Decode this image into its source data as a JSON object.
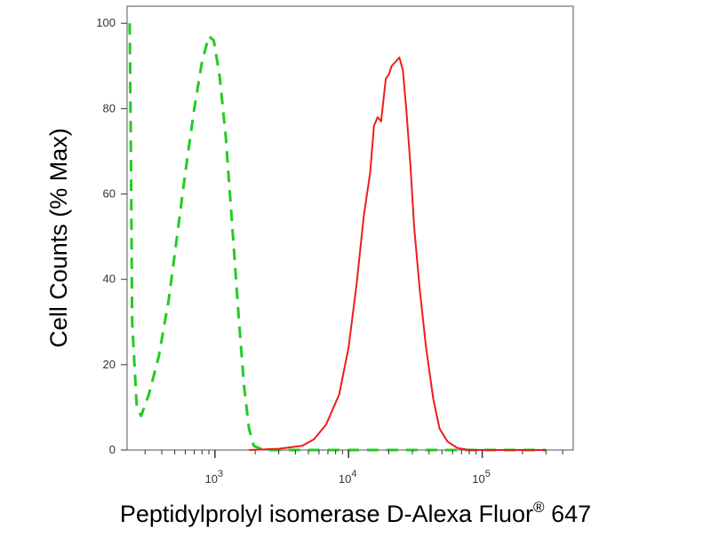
{
  "chart_data": {
    "type": "line",
    "xlabel": "Peptidylprolyl isomerase D-Alexa Fluor",
    "xlabel_superscript": "®",
    "xlabel_suffix": " 647",
    "ylabel": "Cell Counts (% Max)",
    "x_scale": "log",
    "xlim": [
      220,
      480000
    ],
    "ylim": [
      0,
      104
    ],
    "y_ticks": [
      0,
      20,
      40,
      60,
      80,
      100
    ],
    "y_tick_labels": [
      "0",
      "20",
      "40",
      "60",
      "80",
      "100"
    ],
    "x_major_ticks": [
      1000,
      10000,
      100000
    ],
    "x_tick_labels": [
      {
        "value": 1000,
        "base": "10",
        "exp": "3"
      },
      {
        "value": 10000,
        "base": "10",
        "exp": "4"
      },
      {
        "value": 100000,
        "base": "10",
        "exp": "5"
      }
    ],
    "grid": false,
    "series": [
      {
        "color": "#22cc22",
        "dash": "dashed",
        "points": [
          [
            230,
            100
          ],
          [
            235,
            70
          ],
          [
            240,
            30
          ],
          [
            260,
            10
          ],
          [
            280,
            8
          ],
          [
            320,
            13
          ],
          [
            380,
            22
          ],
          [
            450,
            35
          ],
          [
            520,
            50
          ],
          [
            600,
            65
          ],
          [
            700,
            80
          ],
          [
            800,
            91
          ],
          [
            900,
            97
          ],
          [
            980,
            96
          ],
          [
            1080,
            88
          ],
          [
            1200,
            74
          ],
          [
            1350,
            52
          ],
          [
            1500,
            32
          ],
          [
            1650,
            15
          ],
          [
            1800,
            5
          ],
          [
            1950,
            1
          ],
          [
            2300,
            0
          ],
          [
            5000,
            0
          ],
          [
            20000,
            0
          ],
          [
            70000,
            0
          ],
          [
            300000,
            0
          ]
        ]
      },
      {
        "color": "#ee1c1c",
        "dash": "solid",
        "points": [
          [
            1800,
            0
          ],
          [
            3000,
            0.3
          ],
          [
            4500,
            1
          ],
          [
            5500,
            2.5
          ],
          [
            6800,
            6
          ],
          [
            8500,
            13
          ],
          [
            10000,
            24
          ],
          [
            11500,
            39
          ],
          [
            13000,
            55
          ],
          [
            14500,
            65
          ],
          [
            15500,
            76
          ],
          [
            16500,
            78
          ],
          [
            17500,
            77
          ],
          [
            19000,
            87
          ],
          [
            20000,
            88
          ],
          [
            21000,
            90
          ],
          [
            22500,
            91
          ],
          [
            24000,
            92
          ],
          [
            25500,
            89
          ],
          [
            27000,
            80
          ],
          [
            29000,
            67
          ],
          [
            31000,
            52
          ],
          [
            34000,
            38
          ],
          [
            38000,
            24
          ],
          [
            43000,
            12
          ],
          [
            48000,
            5
          ],
          [
            55000,
            2
          ],
          [
            65000,
            0.5
          ],
          [
            80000,
            0
          ],
          [
            300000,
            0
          ]
        ]
      }
    ]
  }
}
